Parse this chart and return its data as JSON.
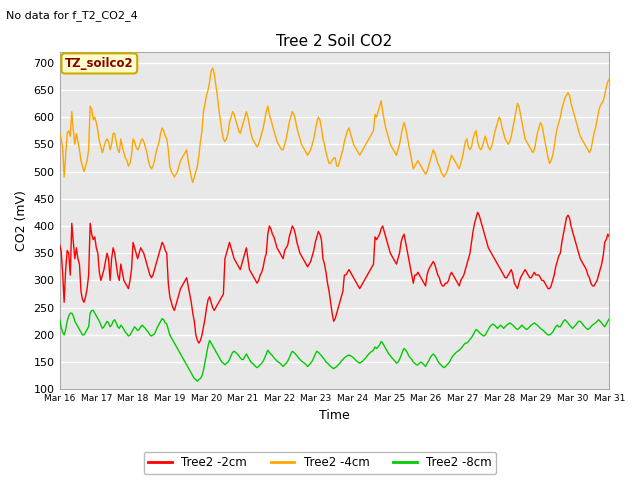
{
  "title": "Tree 2 Soil CO2",
  "subtitle": "No data for f_T2_CO2_4",
  "xlabel": "Time",
  "ylabel": "CO2 (mV)",
  "ylim": [
    100,
    720
  ],
  "yticks": [
    100,
    150,
    200,
    250,
    300,
    350,
    400,
    450,
    500,
    550,
    600,
    650,
    700
  ],
  "fig_bg_color": "#ffffff",
  "plot_bg_color": "#e8e8e8",
  "grid_color": "#ffffff",
  "legend_labels": [
    "Tree2 -2cm",
    "Tree2 -4cm",
    "Tree2 -8cm"
  ],
  "legend_colors": [
    "#ff0000",
    "#ffa500",
    "#00cc00"
  ],
  "annotation_box": "TZ_soilco2",
  "annotation_box_bg": "#ffffcc",
  "annotation_box_border": "#ccaa00",
  "annotation_text_color": "#8B0000",
  "n_points": 360,
  "red_data": [
    367,
    355,
    315,
    260,
    320,
    355,
    350,
    310,
    405,
    370,
    340,
    360,
    340,
    330,
    280,
    265,
    260,
    270,
    285,
    310,
    405,
    385,
    375,
    380,
    360,
    350,
    315,
    300,
    310,
    320,
    335,
    350,
    340,
    300,
    340,
    360,
    350,
    330,
    310,
    300,
    330,
    315,
    300,
    295,
    290,
    285,
    300,
    320,
    370,
    360,
    350,
    340,
    350,
    360,
    355,
    350,
    340,
    330,
    320,
    310,
    305,
    310,
    320,
    330,
    340,
    350,
    360,
    370,
    365,
    355,
    350,
    295,
    270,
    260,
    250,
    245,
    255,
    265,
    275,
    285,
    290,
    295,
    300,
    305,
    290,
    275,
    260,
    240,
    225,
    200,
    190,
    185,
    190,
    200,
    215,
    230,
    250,
    265,
    270,
    260,
    250,
    245,
    250,
    255,
    260,
    265,
    270,
    275,
    340,
    350,
    360,
    370,
    360,
    350,
    340,
    335,
    330,
    325,
    320,
    330,
    340,
    350,
    360,
    340,
    320,
    315,
    310,
    305,
    300,
    295,
    300,
    310,
    315,
    325,
    340,
    350,
    385,
    400,
    395,
    385,
    380,
    370,
    360,
    355,
    350,
    345,
    340,
    355,
    360,
    365,
    380,
    390,
    400,
    395,
    385,
    370,
    360,
    350,
    345,
    340,
    335,
    330,
    325,
    330,
    335,
    345,
    355,
    370,
    380,
    390,
    385,
    375,
    340,
    330,
    315,
    295,
    280,
    260,
    240,
    225,
    230,
    240,
    250,
    260,
    270,
    280,
    310,
    310,
    315,
    320,
    315,
    310,
    305,
    300,
    295,
    290,
    285,
    290,
    295,
    300,
    305,
    310,
    315,
    320,
    325,
    330,
    380,
    375,
    380,
    385,
    395,
    400,
    390,
    380,
    370,
    360,
    350,
    345,
    340,
    335,
    330,
    340,
    350,
    370,
    380,
    385,
    370,
    355,
    340,
    325,
    310,
    295,
    310,
    310,
    315,
    310,
    305,
    300,
    295,
    290,
    310,
    320,
    325,
    330,
    335,
    330,
    320,
    310,
    305,
    295,
    290,
    290,
    295,
    295,
    300,
    310,
    315,
    310,
    305,
    300,
    295,
    290,
    300,
    305,
    310,
    320,
    330,
    340,
    350,
    370,
    390,
    405,
    415,
    425,
    420,
    410,
    400,
    390,
    380,
    370,
    360,
    355,
    350,
    345,
    340,
    335,
    330,
    325,
    320,
    315,
    310,
    305,
    305,
    310,
    315,
    320,
    310,
    295,
    290,
    285,
    295,
    305,
    310,
    315,
    320,
    315,
    310,
    305,
    305,
    310,
    315,
    310,
    310,
    310,
    305,
    300,
    300,
    295,
    290,
    285,
    285,
    290,
    300,
    310,
    325,
    335,
    345,
    350,
    370,
    385,
    400,
    415,
    420,
    415,
    400,
    390,
    380,
    370,
    360,
    350,
    340,
    335,
    330,
    325,
    320,
    310,
    305,
    295,
    290,
    290,
    295,
    300,
    310,
    320,
    330,
    345,
    370,
    375,
    385,
    380
  ],
  "orange_data": [
    570,
    560,
    545,
    490,
    530,
    570,
    575,
    565,
    610,
    575,
    550,
    570,
    555,
    540,
    520,
    510,
    500,
    510,
    520,
    540,
    620,
    615,
    595,
    600,
    590,
    575,
    555,
    545,
    535,
    545,
    555,
    560,
    555,
    540,
    550,
    570,
    570,
    555,
    540,
    535,
    560,
    545,
    535,
    525,
    520,
    510,
    515,
    530,
    560,
    555,
    545,
    540,
    545,
    555,
    560,
    555,
    545,
    535,
    520,
    510,
    505,
    510,
    520,
    535,
    545,
    555,
    570,
    580,
    575,
    565,
    560,
    540,
    510,
    500,
    495,
    490,
    495,
    500,
    510,
    520,
    525,
    530,
    535,
    540,
    520,
    505,
    490,
    480,
    490,
    500,
    510,
    530,
    555,
    575,
    610,
    625,
    640,
    650,
    665,
    685,
    690,
    680,
    660,
    640,
    615,
    595,
    575,
    560,
    555,
    560,
    570,
    590,
    600,
    610,
    605,
    595,
    585,
    575,
    570,
    580,
    590,
    600,
    610,
    600,
    585,
    570,
    560,
    555,
    550,
    545,
    550,
    560,
    570,
    580,
    595,
    610,
    620,
    605,
    595,
    585,
    575,
    565,
    555,
    550,
    545,
    540,
    540,
    550,
    560,
    575,
    590,
    600,
    610,
    605,
    595,
    580,
    570,
    560,
    550,
    545,
    540,
    535,
    530,
    535,
    540,
    550,
    560,
    575,
    590,
    600,
    595,
    580,
    560,
    550,
    535,
    525,
    515,
    515,
    520,
    525,
    525,
    510,
    510,
    520,
    530,
    540,
    555,
    565,
    575,
    580,
    570,
    560,
    550,
    545,
    540,
    535,
    530,
    535,
    540,
    545,
    550,
    555,
    560,
    565,
    570,
    575,
    605,
    600,
    610,
    620,
    630,
    610,
    595,
    580,
    570,
    560,
    550,
    545,
    540,
    535,
    530,
    540,
    550,
    565,
    580,
    590,
    580,
    565,
    550,
    535,
    520,
    505,
    510,
    515,
    520,
    515,
    510,
    505,
    500,
    495,
    500,
    510,
    520,
    530,
    540,
    535,
    525,
    515,
    510,
    500,
    495,
    490,
    495,
    500,
    510,
    520,
    530,
    525,
    520,
    515,
    510,
    505,
    515,
    525,
    540,
    555,
    560,
    545,
    540,
    545,
    560,
    570,
    575,
    555,
    545,
    540,
    545,
    555,
    565,
    555,
    545,
    540,
    545,
    555,
    570,
    580,
    590,
    600,
    595,
    580,
    570,
    560,
    555,
    550,
    555,
    565,
    580,
    595,
    610,
    625,
    620,
    605,
    590,
    575,
    560,
    555,
    550,
    545,
    540,
    535,
    540,
    555,
    570,
    580,
    590,
    585,
    570,
    555,
    540,
    525,
    515,
    520,
    530,
    545,
    565,
    580,
    590,
    600,
    615,
    625,
    635,
    640,
    645,
    640,
    625,
    615,
    605,
    595,
    585,
    575,
    565,
    560,
    555,
    550,
    545,
    540,
    535,
    540,
    555,
    570,
    580,
    595,
    610,
    620,
    625,
    630,
    640,
    655,
    665,
    670
  ],
  "green_data": [
    230,
    215,
    205,
    200,
    210,
    225,
    235,
    240,
    240,
    235,
    225,
    220,
    215,
    210,
    205,
    200,
    200,
    205,
    210,
    215,
    240,
    245,
    245,
    240,
    235,
    230,
    225,
    218,
    212,
    215,
    220,
    225,
    222,
    215,
    218,
    225,
    228,
    222,
    215,
    212,
    218,
    215,
    210,
    205,
    202,
    198,
    200,
    205,
    210,
    215,
    212,
    208,
    210,
    215,
    218,
    215,
    212,
    208,
    205,
    200,
    198,
    200,
    202,
    208,
    215,
    220,
    225,
    230,
    228,
    222,
    220,
    210,
    200,
    195,
    190,
    185,
    180,
    175,
    170,
    165,
    160,
    155,
    150,
    145,
    140,
    135,
    130,
    125,
    120,
    118,
    115,
    118,
    120,
    125,
    135,
    150,
    165,
    180,
    190,
    185,
    180,
    175,
    170,
    165,
    160,
    155,
    150,
    148,
    145,
    148,
    150,
    155,
    162,
    168,
    170,
    168,
    165,
    162,
    158,
    155,
    155,
    160,
    165,
    160,
    155,
    150,
    148,
    145,
    142,
    140,
    142,
    145,
    148,
    152,
    158,
    165,
    172,
    168,
    165,
    162,
    158,
    155,
    152,
    150,
    148,
    145,
    142,
    145,
    148,
    152,
    158,
    165,
    170,
    168,
    165,
    162,
    158,
    155,
    152,
    150,
    148,
    145,
    142,
    145,
    148,
    152,
    158,
    165,
    170,
    168,
    165,
    162,
    158,
    155,
    150,
    148,
    145,
    142,
    140,
    138,
    140,
    142,
    145,
    148,
    152,
    155,
    158,
    160,
    162,
    163,
    162,
    160,
    158,
    155,
    152,
    150,
    148,
    150,
    152,
    155,
    158,
    162,
    165,
    168,
    170,
    172,
    178,
    175,
    178,
    182,
    188,
    185,
    180,
    175,
    170,
    165,
    162,
    158,
    155,
    152,
    148,
    150,
    155,
    162,
    170,
    175,
    172,
    168,
    162,
    158,
    155,
    150,
    148,
    145,
    145,
    148,
    150,
    148,
    145,
    142,
    148,
    152,
    158,
    162,
    165,
    162,
    158,
    152,
    148,
    145,
    142,
    140,
    142,
    145,
    148,
    152,
    158,
    162,
    165,
    168,
    170,
    172,
    175,
    178,
    182,
    185,
    185,
    188,
    192,
    195,
    200,
    205,
    210,
    208,
    205,
    202,
    200,
    198,
    200,
    205,
    210,
    215,
    218,
    220,
    218,
    215,
    212,
    215,
    218,
    215,
    212,
    215,
    218,
    220,
    222,
    220,
    218,
    215,
    212,
    210,
    212,
    215,
    218,
    215,
    212,
    210,
    212,
    215,
    218,
    220,
    222,
    220,
    218,
    215,
    212,
    210,
    208,
    205,
    202,
    200,
    200,
    202,
    205,
    210,
    215,
    218,
    215,
    215,
    220,
    225,
    228,
    225,
    222,
    218,
    215,
    212,
    215,
    218,
    222,
    225,
    225,
    222,
    218,
    215,
    212,
    210,
    212,
    215,
    218,
    220,
    222,
    225,
    228,
    225,
    222,
    218,
    215,
    220,
    225,
    230
  ]
}
